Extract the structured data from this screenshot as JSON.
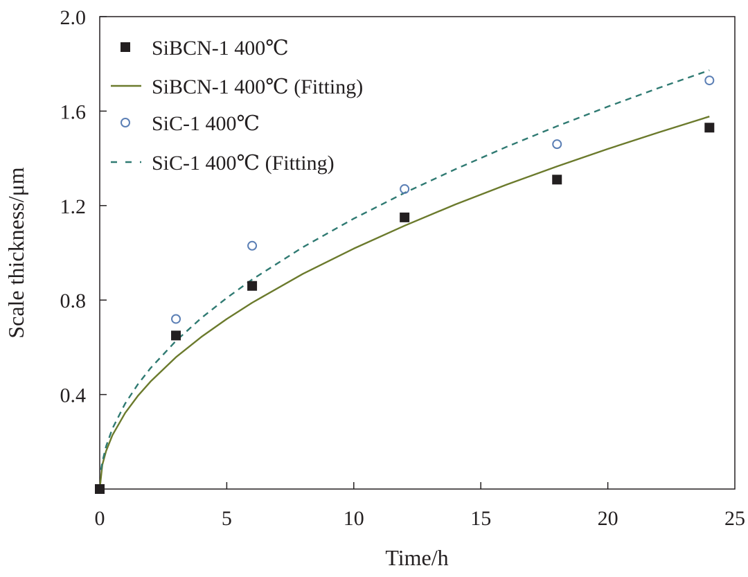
{
  "chart_data": {
    "type": "scatter",
    "xlabel": "Time/h",
    "ylabel": "Scale thickness/μm",
    "xlim": [
      0,
      25
    ],
    "ylim": [
      0,
      2.0
    ],
    "x_ticks": [
      0,
      5,
      10,
      15,
      20,
      25
    ],
    "x_tick_labels": [
      "0",
      "5",
      "10",
      "15",
      "20",
      "25"
    ],
    "y_ticks": [
      0.4,
      0.8,
      1.2,
      1.6,
      2.0
    ],
    "y_tick_labels": [
      "0.4",
      "0.8",
      "1.2",
      "1.6",
      "2.0"
    ],
    "grid": false,
    "legend_position": "top-left",
    "series": [
      {
        "name": "SiBCN-1 400℃",
        "kind": "scatter",
        "marker": "filled-square",
        "color": "#231f20",
        "x": [
          0,
          3,
          6,
          12,
          18,
          24
        ],
        "y": [
          0,
          0.65,
          0.86,
          1.15,
          1.31,
          1.53
        ]
      },
      {
        "name": "SiBCN-1 400℃ (Fitting)",
        "kind": "line",
        "style": "solid",
        "color": "#6b7a2c",
        "equation": "y = 0.322 * sqrt(x)",
        "x": [
          0,
          0.1,
          0.25,
          0.5,
          1,
          1.5,
          2,
          3,
          4,
          5,
          6,
          8,
          10,
          12,
          14,
          16,
          18,
          20,
          22,
          24
        ],
        "y": [
          0,
          0.102,
          0.161,
          0.228,
          0.322,
          0.394,
          0.455,
          0.558,
          0.644,
          0.72,
          0.789,
          0.911,
          1.018,
          1.115,
          1.205,
          1.288,
          1.366,
          1.44,
          1.51,
          1.577
        ]
      },
      {
        "name": "SiC-1 400℃",
        "kind": "scatter",
        "marker": "open-circle",
        "color": "#5b7fb5",
        "x": [
          3,
          6,
          12,
          18,
          24
        ],
        "y": [
          0.72,
          1.03,
          1.27,
          1.46,
          1.73
        ]
      },
      {
        "name": "SiC-1 400℃ (Fitting)",
        "kind": "line",
        "style": "dashed",
        "color": "#2f7a72",
        "equation": "y = 0.362 * sqrt(x)",
        "x": [
          0.05,
          0.1,
          0.25,
          0.5,
          1,
          1.5,
          2,
          3,
          4,
          5,
          6,
          8,
          10,
          12,
          14,
          16,
          18,
          20,
          22,
          24
        ],
        "y": [
          0.081,
          0.114,
          0.181,
          0.256,
          0.362,
          0.443,
          0.512,
          0.627,
          0.724,
          0.809,
          0.887,
          1.024,
          1.145,
          1.254,
          1.354,
          1.448,
          1.536,
          1.619,
          1.698,
          1.773
        ]
      }
    ]
  }
}
